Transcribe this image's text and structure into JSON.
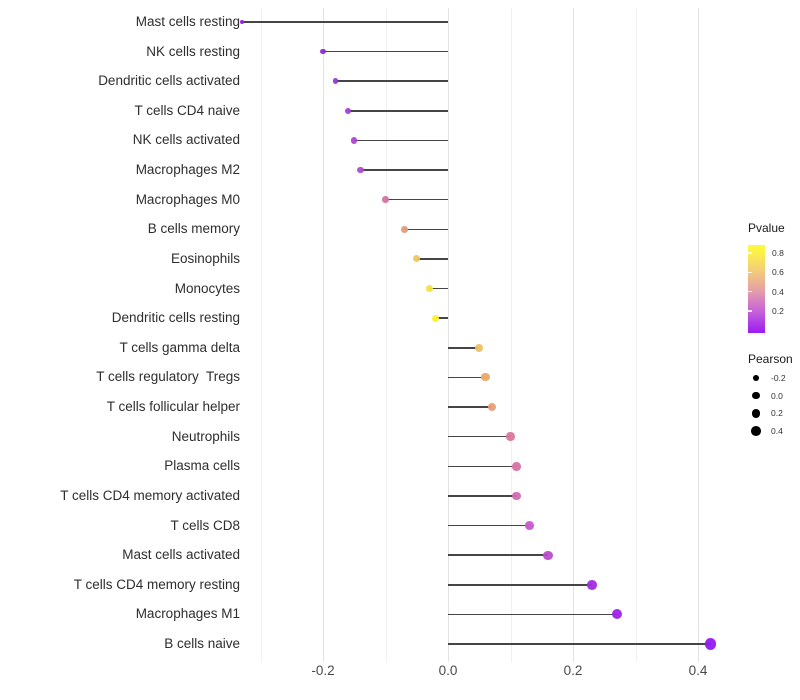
{
  "chart_data": {
    "type": "lollipop",
    "title": "",
    "xlabel": "",
    "ylabel": "",
    "categories": [
      "Mast cells resting",
      "NK cells resting",
      "Dendritic cells activated",
      "T cells CD4 naive",
      "NK cells activated",
      "Macrophages M2",
      "Macrophages M0",
      "B cells memory",
      "Eosinophils",
      "Monocytes",
      "Dendritic cells resting",
      "T cells gamma delta",
      "T cells regulatory  Tregs",
      "T cells follicular helper",
      "Neutrophils",
      "Plasma cells",
      "T cells CD4 memory activated",
      "T cells CD8",
      "Mast cells activated",
      "T cells CD4 memory resting",
      "Macrophages M1",
      "B cells naive"
    ],
    "pearson": [
      -0.33,
      -0.2,
      -0.18,
      -0.16,
      -0.15,
      -0.14,
      -0.1,
      -0.07,
      -0.05,
      -0.03,
      -0.02,
      0.05,
      0.06,
      0.07,
      0.1,
      0.11,
      0.11,
      0.13,
      0.16,
      0.23,
      0.27,
      0.42
    ],
    "pvalue_est": [
      0.06,
      0.12,
      0.17,
      0.2,
      0.23,
      0.24,
      0.4,
      0.55,
      0.67,
      0.8,
      0.87,
      0.64,
      0.57,
      0.52,
      0.45,
      0.42,
      0.38,
      0.3,
      0.25,
      0.15,
      0.1,
      0.04
    ],
    "dot_colors": [
      "#9B17F0",
      "#8E2BD3",
      "#9C36D8",
      "#A540D6",
      "#AC48D3",
      "#B04CD2",
      "#CF74A0",
      "#E59B78",
      "#EEC765",
      "#F6E33B",
      "#FBF32B",
      "#EDC061",
      "#EBAB6C",
      "#E7A078",
      "#D9779E",
      "#D873A8",
      "#D26BB4",
      "#C857CD",
      "#BB4BCD",
      "#A32BE2",
      "#9E23E9",
      "#9819F1"
    ],
    "x_axis": {
      "tick_labels": [
        "-0.2",
        "0.0",
        "0.2",
        "0.4"
      ],
      "tick_values": [
        -0.2,
        0.0,
        0.2,
        0.4
      ],
      "range": [
        -0.377,
        0.462
      ],
      "grid_major_values": [
        -0.2,
        0.0,
        0.2,
        0.4
      ],
      "grid_minor_values": [
        -0.3,
        -0.1,
        0.1,
        0.3
      ]
    },
    "legends": {
      "pvalue": {
        "title": "Pvalue",
        "tick_labels": [
          "0.8",
          "0.6",
          "0.4",
          "0.2"
        ],
        "tick_pct": [
          9,
          31,
          53,
          75
        ],
        "gradient_top_to_bottom": [
          "#FCFB3D",
          "#FBF04A",
          "#F3C97E",
          "#E49CAA",
          "#C763D8",
          "#9C1BF2"
        ],
        "gradient_stop_pct": [
          0,
          9,
          31,
          53,
          75,
          100
        ]
      },
      "pearson": {
        "title": "Pearson",
        "items": [
          {
            "label": "-0.2",
            "diameter": 5.7
          },
          {
            "label": "0.0",
            "diameter": 7.4
          },
          {
            "label": "0.2",
            "diameter": 8.8
          },
          {
            "label": "0.4",
            "diameter": 9.8
          }
        ]
      }
    }
  },
  "style": {
    "stem_color": "#454545",
    "grid_major_color": "#e3e3e3",
    "grid_minor_color": "#f1f1f1",
    "axis_text_color": "#4a4a4a",
    "label_text_color": "#2e2e2e"
  }
}
